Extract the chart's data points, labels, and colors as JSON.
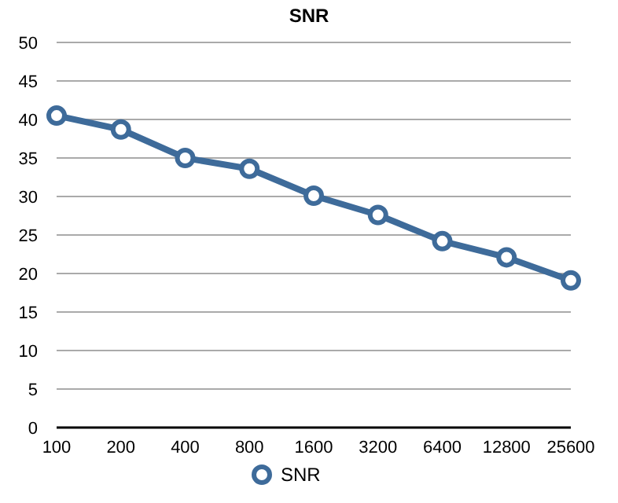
{
  "chart_data": {
    "type": "line",
    "title": "SNR",
    "categories": [
      "100",
      "200",
      "400",
      "800",
      "1600",
      "3200",
      "6400",
      "12800",
      "25600"
    ],
    "series": [
      {
        "name": "SNR",
        "color": "#3e6b9a",
        "values": [
          40.5,
          38.7,
          35.0,
          33.6,
          30.1,
          27.6,
          24.2,
          22.1,
          19.1
        ]
      }
    ],
    "ylim": [
      0,
      50
    ],
    "yticks": [
      0,
      5,
      10,
      15,
      20,
      25,
      30,
      35,
      40,
      45,
      50
    ],
    "grid": "y",
    "legend": "bottom",
    "marker": "circle",
    "line_style": "solid"
  }
}
